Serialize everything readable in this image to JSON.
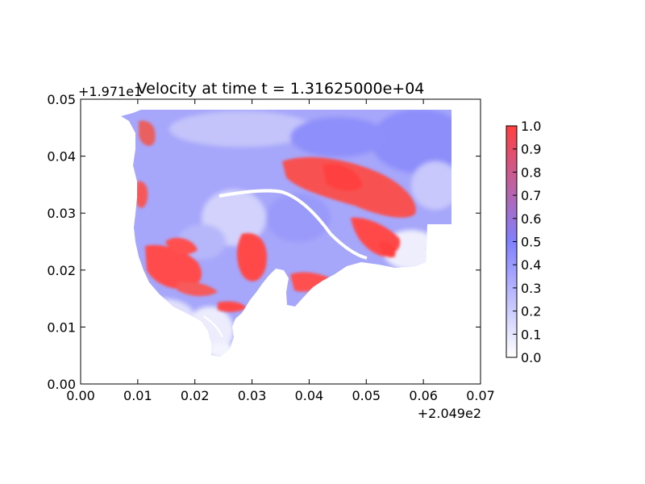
{
  "chart_data": {
    "type": "heatmap",
    "title": "Velocity at time t = 1.31625000e+04",
    "xlabel": "",
    "ylabel": "",
    "x_offset_label": "+2.049e2",
    "y_offset_label": "+1.971e1",
    "x_ticks": [
      "0.00",
      "0.01",
      "0.02",
      "0.03",
      "0.04",
      "0.05",
      "0.06",
      "0.07"
    ],
    "y_ticks": [
      "0.00",
      "0.01",
      "0.02",
      "0.03",
      "0.04",
      "0.05"
    ],
    "xlim": [
      0.0,
      0.07
    ],
    "ylim": [
      0.0,
      0.05
    ],
    "colorbar": {
      "ticks": [
        "0.0",
        "0.1",
        "0.2",
        "0.3",
        "0.4",
        "0.5",
        "0.6",
        "0.7",
        "0.8",
        "0.9",
        "1.0"
      ],
      "range": [
        0.0,
        1.0
      ],
      "colors": [
        "#ffffff",
        "#8080ff",
        "#ff4040"
      ]
    }
  }
}
